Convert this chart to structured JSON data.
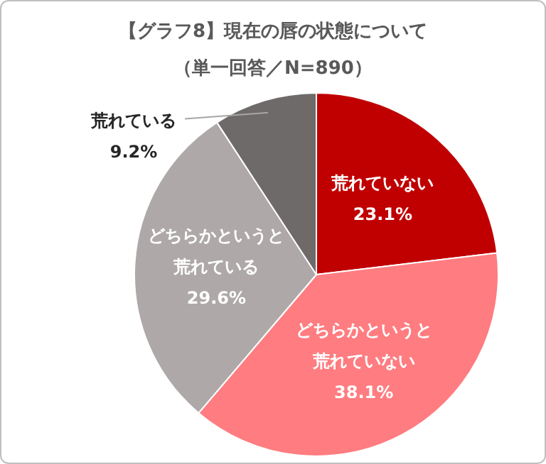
{
  "chart_data": {
    "type": "pie",
    "title": "【グラフ8】現在の唇の状態について",
    "subtitle": "（単一回答／N=890）",
    "categories": [
      "荒れていない",
      "どちらかというと荒れていない",
      "どちらかというと荒れている",
      "荒れている"
    ],
    "values": [
      23.1,
      38.1,
      29.6,
      9.2
    ],
    "colors": [
      "#c00000",
      "#ff7c80",
      "#aea8a8",
      "#6f6a6a"
    ],
    "value_labels": [
      "23.1%",
      "38.1%",
      "29.6%",
      "9.2%"
    ],
    "legend": false
  }
}
